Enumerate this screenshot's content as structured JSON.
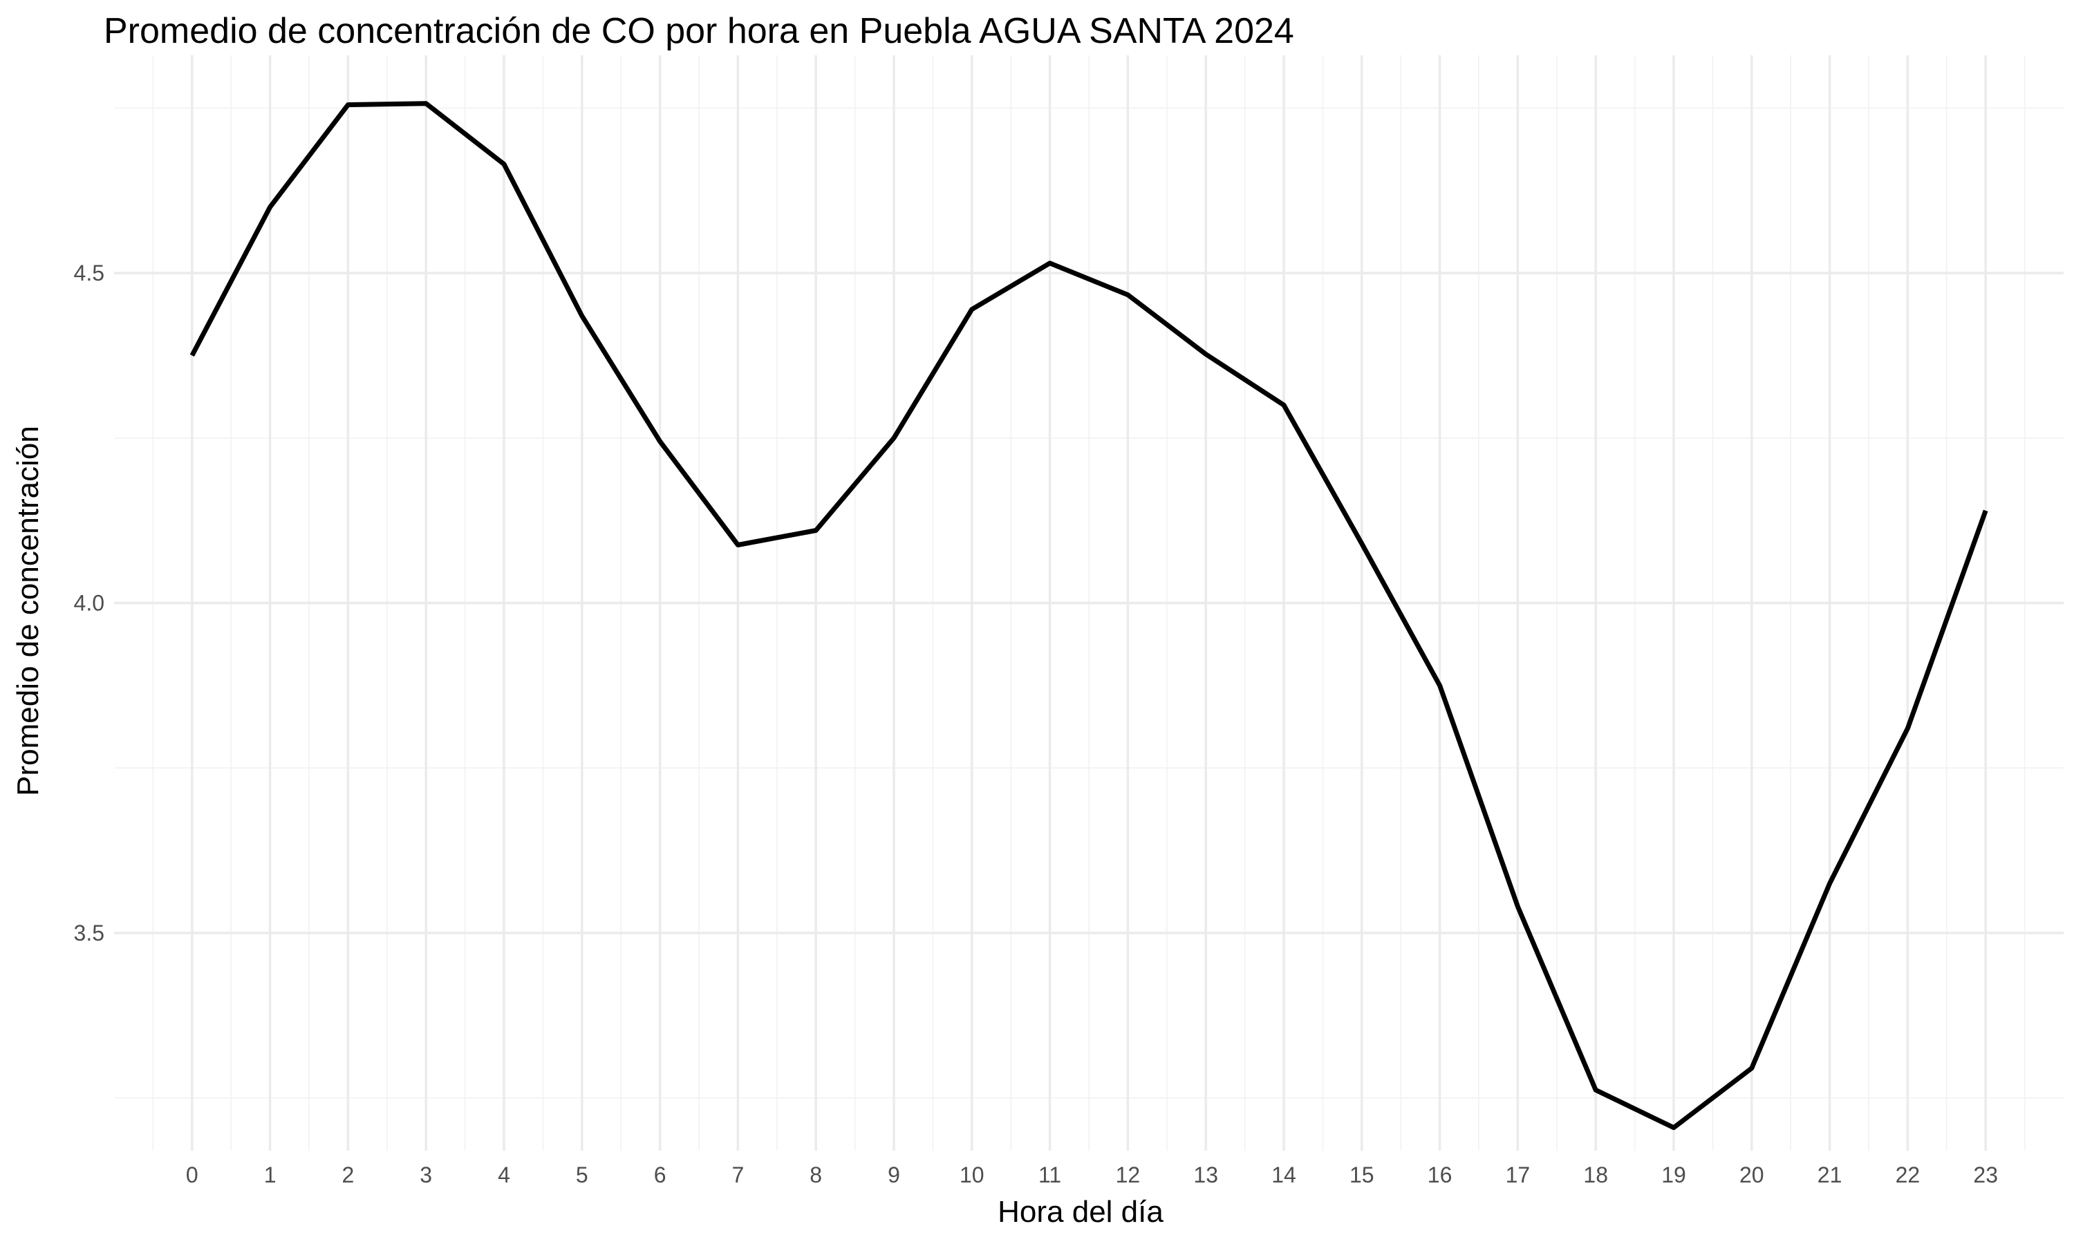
{
  "chart_data": {
    "type": "line",
    "title": "Promedio de concentración de CO por hora en Puebla AGUA SANTA 2024",
    "xlabel": "Hora del día",
    "ylabel": "Promedio de concentración",
    "x": [
      0,
      1,
      2,
      3,
      4,
      5,
      6,
      7,
      8,
      9,
      10,
      11,
      12,
      13,
      14,
      15,
      16,
      17,
      18,
      19,
      20,
      21,
      22,
      23
    ],
    "x_tick_labels": [
      "0",
      "1",
      "2",
      "3",
      "4",
      "5",
      "6",
      "7",
      "8",
      "9",
      "10",
      "11",
      "12",
      "13",
      "14",
      "15",
      "16",
      "17",
      "18",
      "19",
      "20",
      "21",
      "22",
      "23"
    ],
    "series": [
      {
        "values": [
          4.375,
          4.6,
          4.755,
          4.757,
          4.665,
          4.435,
          4.245,
          4.088,
          4.11,
          4.25,
          4.445,
          4.515,
          4.467,
          4.377,
          4.3,
          4.09,
          3.875,
          3.54,
          3.262,
          3.205,
          3.295,
          3.575,
          3.81,
          4.14
        ]
      }
    ],
    "xlim": [
      -1,
      24
    ],
    "ylim": [
      3.17,
      4.83
    ],
    "y_ticks": [
      3.5,
      4.0,
      4.5
    ],
    "y_tick_labels": [
      "3.5",
      "4.0",
      "4.5"
    ],
    "line_color": "#000000",
    "grid": true,
    "legend": "none"
  }
}
